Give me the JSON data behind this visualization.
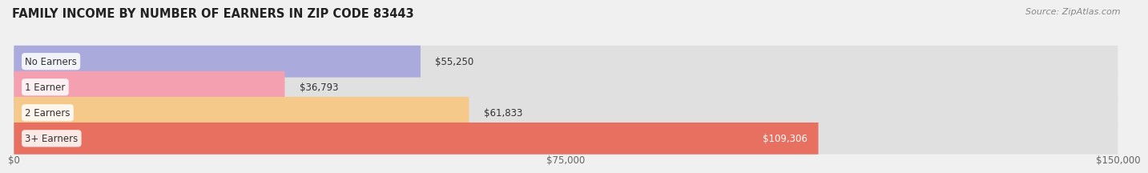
{
  "title": "FAMILY INCOME BY NUMBER OF EARNERS IN ZIP CODE 83443",
  "source": "Source: ZipAtlas.com",
  "categories": [
    "No Earners",
    "1 Earner",
    "2 Earners",
    "3+ Earners"
  ],
  "values": [
    55250,
    36793,
    61833,
    109306
  ],
  "bar_colors": [
    "#aaaadd",
    "#f4a0b0",
    "#f5c98a",
    "#e87060"
  ],
  "label_colors": [
    "#333333",
    "#333333",
    "#333333",
    "#ffffff"
  ],
  "xlim": [
    0,
    150000
  ],
  "xticks": [
    0,
    75000,
    150000
  ],
  "xtick_labels": [
    "$0",
    "$75,000",
    "$150,000"
  ],
  "background_color": "#f0f0f0",
  "bar_bg_color": "#e0e0e0",
  "title_fontsize": 10.5,
  "source_fontsize": 8,
  "value_fontsize": 8.5,
  "category_fontsize": 8.5,
  "tick_fontsize": 8.5
}
